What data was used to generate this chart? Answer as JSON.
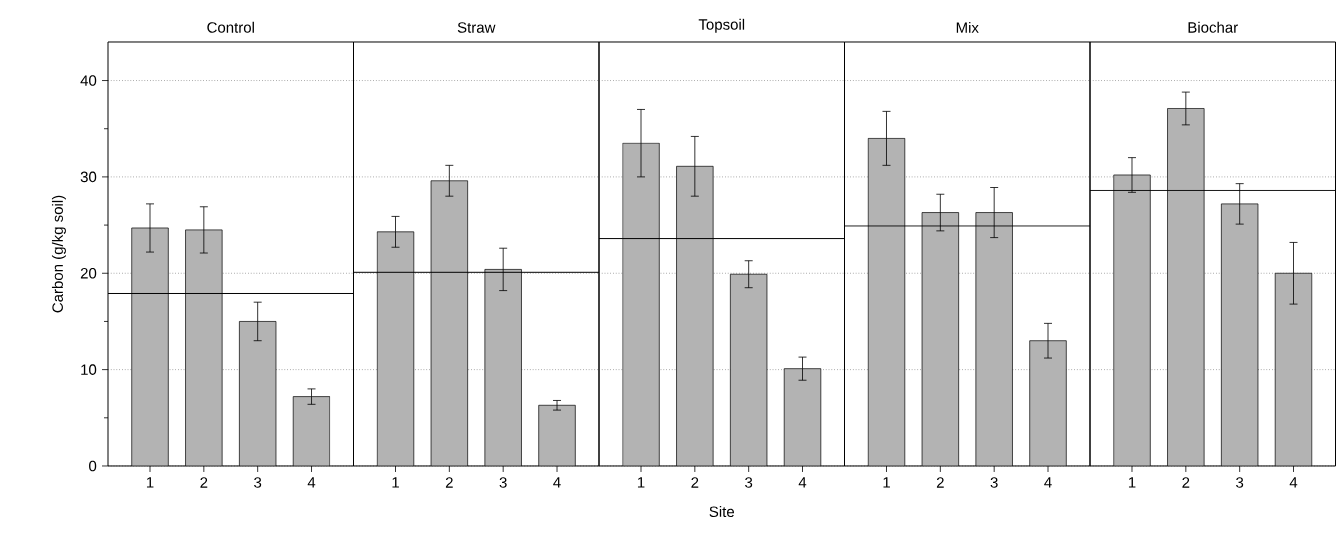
{
  "chart_data": [
    {
      "type": "bar",
      "title": "Control",
      "ylabel": "Carbon (g/kg soil)",
      "categories": [
        "1",
        "2",
        "3",
        "4"
      ],
      "values": [
        24.7,
        24.5,
        15.0,
        7.2
      ],
      "errors": [
        2.5,
        2.4,
        2.0,
        0.8
      ],
      "color": "#b3b3b3",
      "ref_lines": [
        {
          "axis": "y",
          "value": 17.9
        }
      ],
      "ylim": [
        0,
        44
      ],
      "yticks": [
        0,
        {
          "value": 5,
          "label": null
        },
        10,
        {
          "value": 15,
          "label": null
        },
        20,
        {
          "value": 25,
          "label": null
        },
        30,
        {
          "value": 35,
          "label": null
        },
        40
      ],
      "grid": "y"
    },
    {
      "type": "bar",
      "title": "Straw",
      "categories": [
        "1",
        "2",
        "3",
        "4"
      ],
      "values": [
        24.3,
        29.6,
        20.4,
        6.3
      ],
      "errors": [
        1.6,
        1.6,
        2.2,
        0.5
      ],
      "color": "#b3b3b3",
      "ref_lines": [
        {
          "axis": "y",
          "value": 20.1
        }
      ],
      "ylim": [
        0,
        44
      ],
      "yticks": [
        0,
        10,
        20,
        30,
        40
      ],
      "grid": "y",
      "tick_labels": "x"
    },
    {
      "type": "bar",
      "title": "Topsoil",
      "xlabel": "Site",
      "categories": [
        "1",
        "2",
        "3",
        "4"
      ],
      "values": [
        33.5,
        31.1,
        19.9,
        10.1
      ],
      "errors": [
        3.5,
        3.1,
        1.4,
        1.2
      ],
      "color": "#b3b3b3",
      "ref_lines": [
        {
          "axis": "y",
          "value": 23.6
        }
      ],
      "ylim": [
        0,
        44
      ],
      "yticks": [
        0,
        10,
        20,
        30,
        40
      ],
      "grid": "y",
      "tick_labels": "x"
    },
    {
      "type": "bar",
      "title": "Mix",
      "categories": [
        "1",
        "2",
        "3",
        "4"
      ],
      "values": [
        34.0,
        26.3,
        26.3,
        13.0
      ],
      "errors": [
        2.8,
        1.9,
        2.6,
        1.8
      ],
      "color": "#b3b3b3",
      "ref_lines": [
        {
          "axis": "y",
          "value": 24.9
        }
      ],
      "ylim": [
        0,
        44
      ],
      "yticks": [
        0,
        10,
        20,
        30,
        40
      ],
      "grid": "y",
      "tick_labels": "x"
    },
    {
      "type": "bar",
      "title": "Biochar",
      "categories": [
        "1",
        "2",
        "3",
        "4"
      ],
      "values": [
        30.2,
        37.1,
        27.2,
        20.0
      ],
      "errors": [
        1.8,
        1.7,
        2.1,
        3.2
      ],
      "color": "#b3b3b3",
      "ref_lines": [
        {
          "axis": "y",
          "value": 28.6
        }
      ],
      "ylim": [
        0,
        44
      ],
      "yticks": [
        0,
        10,
        20,
        30,
        40
      ],
      "grid": "y",
      "tick_labels": "x"
    }
  ]
}
